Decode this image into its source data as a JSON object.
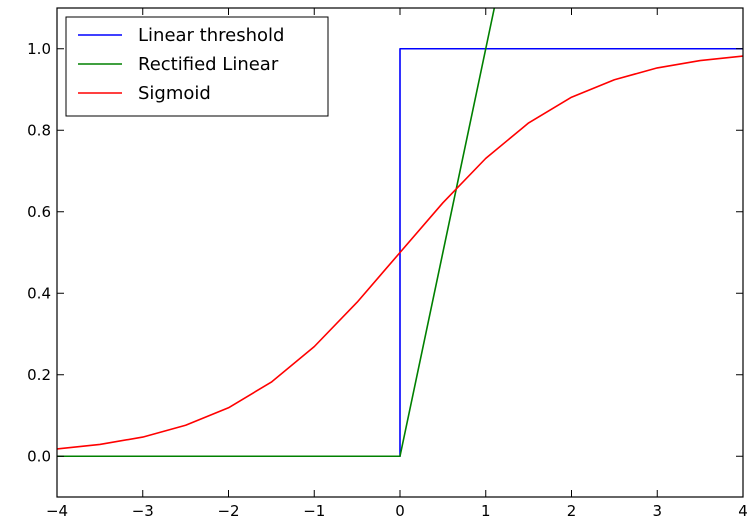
{
  "chart_data": {
    "type": "line",
    "title": "",
    "xlabel": "",
    "ylabel": "",
    "xlim": [
      -4,
      4
    ],
    "ylim": [
      -0.1,
      1.1
    ],
    "xticks": [
      -4,
      -3,
      -2,
      -1,
      0,
      1,
      2,
      3,
      4
    ],
    "xtick_labels": [
      "−4",
      "−3",
      "−2",
      "−1",
      "0",
      "1",
      "2",
      "3",
      "4"
    ],
    "yticks": [
      0.0,
      0.2,
      0.4,
      0.6,
      0.8,
      1.0
    ],
    "ytick_labels": [
      "0.0",
      "0.2",
      "0.4",
      "0.6",
      "0.8",
      "1.0"
    ],
    "grid": false,
    "legend_position": "top-left",
    "series": [
      {
        "name": "Linear threshold",
        "color": "#0000ff",
        "x": [
          -4,
          0,
          0,
          4
        ],
        "y": [
          0,
          0,
          1,
          1
        ]
      },
      {
        "name": "Rectified Linear",
        "color": "#008000",
        "x": [
          -4,
          0,
          1.1
        ],
        "y": [
          0,
          0,
          1.1
        ]
      },
      {
        "name": "Sigmoid",
        "color": "#ff0000",
        "x": [
          -4,
          -3.5,
          -3,
          -2.5,
          -2,
          -1.5,
          -1,
          -0.5,
          0,
          0.5,
          1,
          1.5,
          2,
          2.5,
          3,
          3.5,
          4
        ],
        "y": [
          0.018,
          0.029,
          0.047,
          0.076,
          0.119,
          0.182,
          0.269,
          0.378,
          0.5,
          0.622,
          0.731,
          0.818,
          0.881,
          0.924,
          0.953,
          0.971,
          0.982
        ]
      }
    ]
  }
}
